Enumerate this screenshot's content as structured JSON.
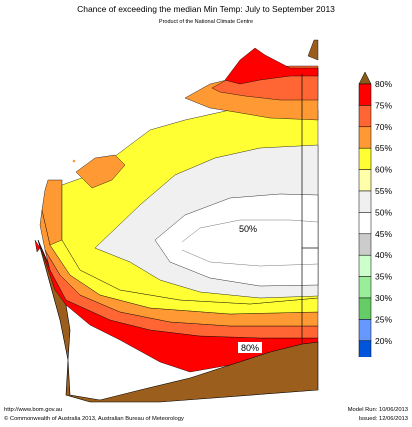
{
  "header": {
    "title": "Chance of exceeding the median Min Temp: July to September 2013",
    "subtitle": "Product of the National Climate Centre"
  },
  "map": {
    "region_labels": [
      "50%",
      "80%"
    ]
  },
  "legend": {
    "items": [
      {
        "label": "80%",
        "color": "#ff0000"
      },
      {
        "label": "75%",
        "color": "#ff6633"
      },
      {
        "label": "70%",
        "color": "#ff9933"
      },
      {
        "label": "65%",
        "color": "#ffff33"
      },
      {
        "label": "60%",
        "color": "#ffffaa"
      },
      {
        "label": "55%",
        "color": "#f0f0f0"
      },
      {
        "label": "50%",
        "color": "#ffffff"
      },
      {
        "label": "45%",
        "color": "#cccccc"
      },
      {
        "label": "40%",
        "color": "#ccffcc"
      },
      {
        "label": "35%",
        "color": "#99ee99"
      },
      {
        "label": "30%",
        "color": "#66cc66"
      },
      {
        "label": "25%",
        "color": "#6699ff"
      },
      {
        "label": "20%",
        "color": "#0055dd"
      }
    ],
    "top_cap_color": "#8b5a1a",
    "bottom_cap_color": "#7a00cc"
  },
  "colors": {
    "above_80": "#9b5e1d",
    "outline": "#000000"
  },
  "footer": {
    "url": "http://www.bom.gov.au",
    "copyright": "©  Commonwealth of Australia 2013, Australian Bureau of Meteorology",
    "model_run": "Model Run: 10/06/2013",
    "issued": "Issued: 12/06/2013"
  }
}
